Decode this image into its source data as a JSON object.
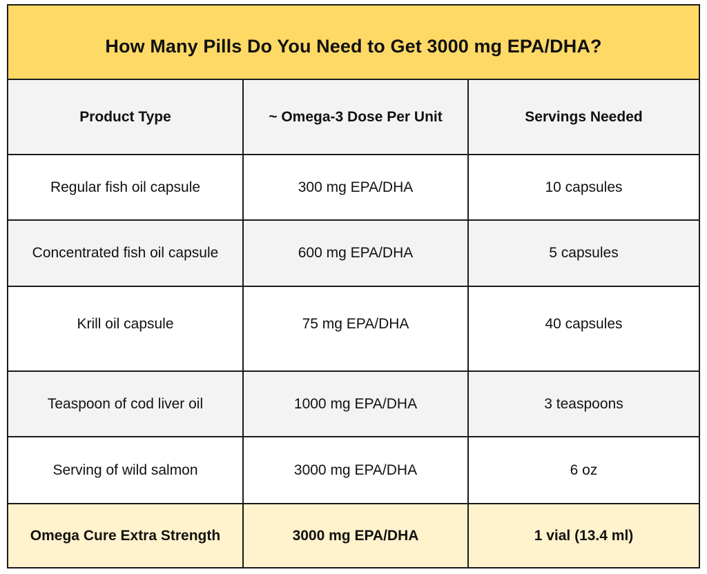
{
  "title": "How Many Pills Do You Need to Get 3000 mg EPA/DHA?",
  "colors": {
    "title_background": "#ffd966",
    "header_background": "#f3f3f3",
    "alt_row_background": "#f3f3f3",
    "highlight_row_background": "#fff2cc",
    "border": "#1a1a1a"
  },
  "table": {
    "headers": [
      "Product Type",
      "~ Omega-3 Dose Per Unit",
      "Servings Needed"
    ],
    "rows": [
      {
        "product": "Regular fish oil capsule",
        "dose": "300 mg EPA/DHA",
        "servings": "10 capsules"
      },
      {
        "product": "Concentrated fish oil capsule",
        "dose": "600 mg EPA/DHA",
        "servings": "5 capsules"
      },
      {
        "product": "Krill oil capsule",
        "dose": "75 mg EPA/DHA",
        "servings": "40 capsules"
      },
      {
        "product": "Teaspoon of cod liver oil",
        "dose": "1000 mg EPA/DHA",
        "servings": "3 teaspoons"
      },
      {
        "product": "Serving of wild salmon",
        "dose": "3000 mg EPA/DHA",
        "servings": "6 oz"
      },
      {
        "product": "Omega Cure Extra Strength",
        "dose": "3000 mg EPA/DHA",
        "servings": "1 vial (13.4 ml)"
      }
    ]
  }
}
